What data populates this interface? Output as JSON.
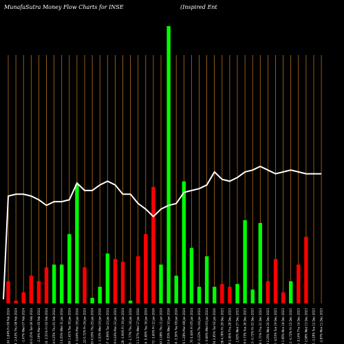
{
  "header": {
    "title": "MunafaSutra  Money Flow  Charts for INSE",
    "company": "(Inspired Ent"
  },
  "colors": {
    "background": "#000000",
    "grid": "#b8741a",
    "up": "#00ff00",
    "down": "#ff0000",
    "line": "#ffffff"
  },
  "chart_data": {
    "type": "bar",
    "ylim": [
      0,
      100
    ],
    "line_ylim": [
      0,
      100
    ],
    "grid": "vertical",
    "categories": [
      "4.04 1.84% Fri 09 Feb 2024",
      "4.04 -2.43% Thu 08 Feb 2024",
      "3.94 -1.47% Wed 07 Feb 2024",
      "4.04 0.25% Tue 06 Feb 2024",
      "3.94 -2.19% Mon 05 Feb 2024",
      "4.04 -2.51% Fri 02 Feb 2024",
      "3.94 0.25% Thu 01 Feb 2024",
      "3.93 4.05% Wed 31 Jan 2024",
      "4.04 1.41% Tue 30 Jan 2024",
      "3.99 -5.64% Mon 29 Jan 2024",
      "4.22 0.72% Fri 26 Jan 2024",
      "4.19 4.55% Thu 25 Jan 2024",
      "4.01 -1.53% Wed 24 Jan 2024",
      "4.07 -4.99% Tue 23 Jan 2024",
      "4.29 0.24% Mon 22 Jan 2024",
      "4.28 -3.94% Fri 19 Jan 2024",
      "4.45 -1.77% Thu 18 Jan 2024",
      "4.53 1.57% Wed 17 Jan 2024",
      "4.46 -5.49% Tue 16 Jan 2024",
      "4.72 -3.60% Fri 12 Jan 2024",
      "4.90 2.08% Thu 11 Jan 2024",
      "4.80 4.35% Wed 10 Jan 2024",
      "4.60 -3.36% Tue 09 Jan 2024",
      "4.76 1.28% Mon 08 Jan 2024",
      "4.70 4.44% Fri 05 Jan 2024",
      "4.50 -0.22% Thu 04 Jan 2024",
      "4.51 -0.66% Wed 03 Jan 2024",
      "4.54 3.65% Tue 02 Jan 2024",
      "4.38 4.78% Fri 29 Dec 2023",
      "4.18 2.45% Thu 28 Dec 2023",
      "4.08 -1.92% Wed 27 Dec 2023",
      "4.16 0.73% Tue 26 Dec 2023",
      "4.13 -0.72% Fri 22 Dec 2023",
      "4.16 1.71% Thu 21 Dec 2023",
      "4.09 2.25% Wed 20 Dec 2023",
      "4.00 -4.53% Tue 19 Dec 2023",
      "4.19 1.95% Mon 18 Dec 2023",
      "4.11 -0.72% Fri 15 Dec 2023",
      "4.14 -5.14% Thu 14 Dec 2023",
      "4.37 2.58% Wed 13 Dec 2023",
      "4.26 -3.18% Tue 12 Dec 2023",
      "4.40 -2.87% Mon 11 Dec 2023"
    ],
    "series": [
      {
        "type": "bar",
        "values": [
          8,
          1,
          4,
          10,
          8,
          13,
          14,
          14,
          25,
          43,
          13,
          2,
          6,
          18,
          16,
          15,
          1,
          17,
          25,
          42,
          14,
          100,
          10,
          44,
          20,
          6,
          17,
          6,
          7,
          6,
          7,
          30,
          5,
          29,
          8,
          16,
          4,
          8,
          14,
          24,
          0,
          0
        ],
        "colors": [
          "down",
          "down",
          "down",
          "down",
          "down",
          "down",
          "up",
          "up",
          "up",
          "up",
          "down",
          "up",
          "up",
          "up",
          "down",
          "down",
          "up",
          "down",
          "down",
          "down",
          "up",
          "up",
          "up",
          "up",
          "up",
          "up",
          "up",
          "up",
          "down",
          "down",
          "up",
          "up",
          "up",
          "up",
          "down",
          "down",
          "down",
          "up",
          "down",
          "down",
          "up",
          "up"
        ]
      },
      {
        "type": "line",
        "values": [
          50,
          51,
          51,
          50,
          48,
          45,
          47,
          47,
          48,
          57,
          53,
          53,
          56,
          58,
          56,
          51,
          51,
          46,
          43,
          39,
          43,
          45,
          46,
          52,
          53,
          54,
          56,
          63,
          59,
          58,
          60,
          63,
          64,
          66,
          64,
          62,
          63,
          64,
          63,
          62,
          62,
          62
        ]
      }
    ]
  }
}
